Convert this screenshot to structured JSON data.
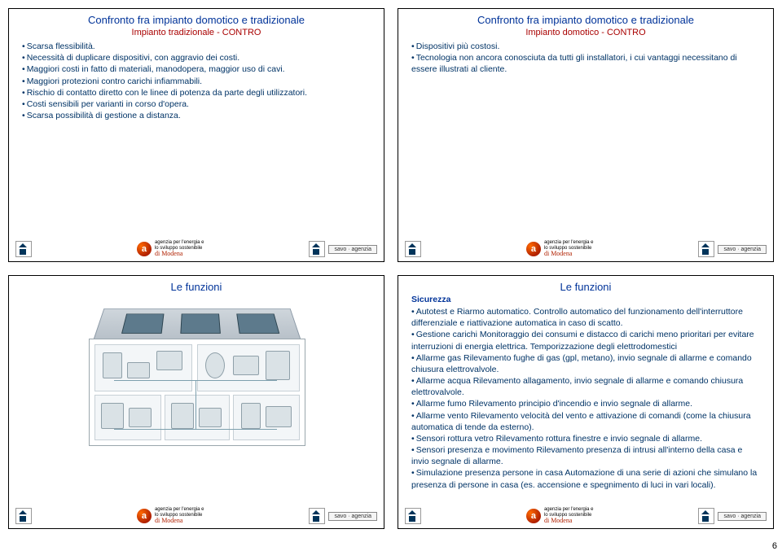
{
  "page_number": "6",
  "footer": {
    "agency_line1": "agenzia per l'energia e",
    "agency_line2": "lo sviluppo sostenibile",
    "agency_cursive": "di Modena",
    "savo_label": "savo · agenzia",
    "logo_letter": "a"
  },
  "slides": [
    {
      "title": "Confronto fra impianto domotico e tradizionale",
      "subtitle": "Impianto tradizionale - CONTRO",
      "bullets": [
        "Scarsa flessibilità.",
        "Necessità di duplicare dispositivi, con aggravio dei costi.",
        "Maggiori costi in fatto di materiali, manodopera, maggior uso di cavi.",
        "Maggiori protezioni contro carichi infiammabili.",
        "Rischio di contatto diretto con le linee di potenza da parte degli utilizzatori.",
        "Costi sensibili per varianti in corso d'opera.",
        "Scarsa possibilità di gestione a distanza."
      ]
    },
    {
      "title": "Confronto fra impianto domotico e tradizionale",
      "subtitle": "Impianto domotico - CONTRO",
      "bullets": [
        "Dispositivi più costosi.",
        "Tecnologia non ancora conosciuta da tutti gli installatori, i cui vantaggi necessitano di essere illustrati al cliente."
      ]
    },
    {
      "title": "Le funzioni",
      "has_diagram": true
    },
    {
      "title": "Le funzioni",
      "section_header": "Sicurezza",
      "bullets": [
        "Autotest e Riarmo automatico. Controllo automatico del funzionamento dell'interruttore differenziale e riattivazione automatica in caso di scatto.",
        "Gestione carichi Monitoraggio dei consumi e distacco di carichi meno prioritari per evitare interruzioni di energia elettrica. Temporizzazione degli elettrodomestici",
        "Allarme gas Rilevamento fughe di gas (gpl, metano), invio segnale di allarme e comando chiusura elettrovalvole.",
        "Allarme acqua Rilevamento allagamento, invio segnale di allarme e comando chiusura elettrovalvole.",
        "Allarme fumo Rilevamento principio d'incendio e invio segnale di allarme.",
        "Allarme vento Rilevamento velocità del vento e attivazione di comandi (come la chiusura automatica di tende da esterno).",
        "Sensori rottura vetro Rilevamento rottura finestre e invio segnale di allarme.",
        "Sensori presenza e movimento Rilevamento presenza di intrusi all'interno della casa e invio segnale di allarme.",
        "Simulazione presenza persone in casa Automazione di una serie di azioni che simulano la presenza di persone in casa (es. accensione e spegnimento di luci in vari locali)."
      ]
    }
  ]
}
